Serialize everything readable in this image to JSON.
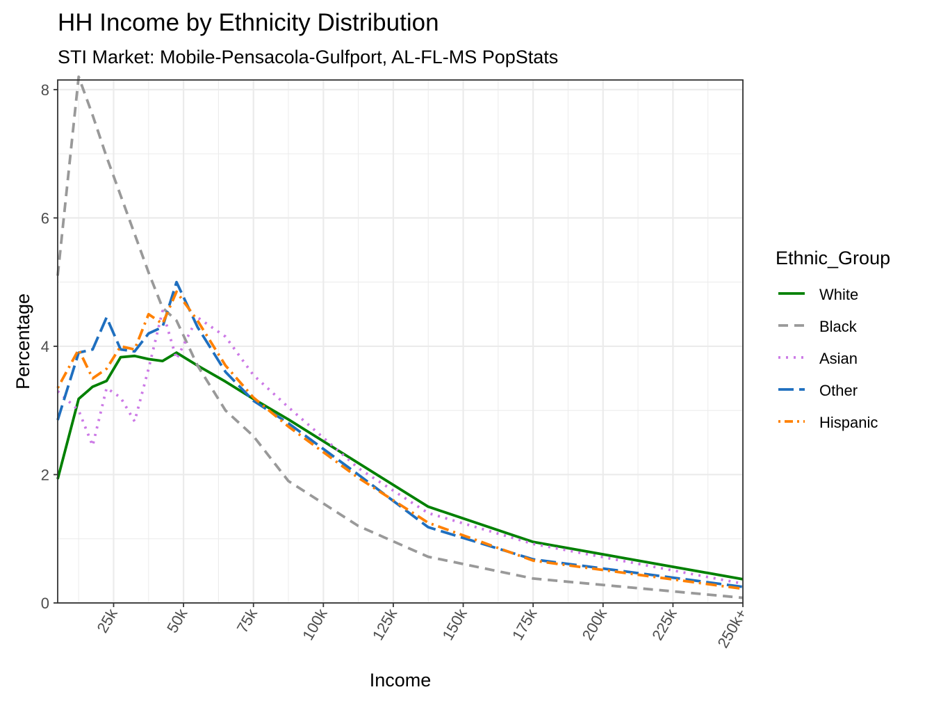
{
  "chart_data": {
    "type": "line",
    "title": "HH Income by Ethnicity Distribution",
    "subtitle": "STI Market: Mobile-Pensacola-Gulfport, AL-FL-MS PopStats",
    "xlabel": "Income",
    "ylabel": "Percentage",
    "x_ticks": [
      {
        "value": 25000,
        "label": "25k"
      },
      {
        "value": 50000,
        "label": "50k"
      },
      {
        "value": 75000,
        "label": "75k"
      },
      {
        "value": 100000,
        "label": "100k"
      },
      {
        "value": 125000,
        "label": "125k"
      },
      {
        "value": 150000,
        "label": "150k"
      },
      {
        "value": 175000,
        "label": "175k"
      },
      {
        "value": 200000,
        "label": "200k"
      },
      {
        "value": 225000,
        "label": "225k"
      },
      {
        "value": 250000,
        "label": "250k+"
      }
    ],
    "y_ticks": [
      0,
      2,
      4,
      6,
      8
    ],
    "xlim": [
      5000,
      250000
    ],
    "ylim": [
      0,
      8.15
    ],
    "grid": true,
    "legend_position": "right",
    "legend_title": "Ethnic_Group",
    "x": [
      5000,
      12500,
      17500,
      22500,
      27500,
      32500,
      37500,
      42500,
      47500,
      55000,
      65000,
      75000,
      87500,
      112500,
      137500,
      175000,
      250000
    ],
    "series": [
      {
        "name": "White",
        "color": "#008000",
        "dash": "solid",
        "values": [
          1.93,
          3.18,
          3.37,
          3.46,
          3.83,
          3.85,
          3.8,
          3.77,
          3.9,
          3.7,
          3.45,
          3.18,
          2.86,
          2.18,
          1.5,
          0.95,
          0.37
        ]
      },
      {
        "name": "Black",
        "color": "#999999",
        "dash": "dashed",
        "values": [
          5.1,
          8.2,
          7.6,
          6.95,
          6.35,
          5.75,
          5.15,
          4.6,
          4.4,
          3.7,
          3.0,
          2.6,
          1.9,
          1.2,
          0.72,
          0.38,
          0.08
        ]
      },
      {
        "name": "Asian",
        "color": "#cc79e6",
        "dash": "dotted",
        "values": [
          3.3,
          3.0,
          2.45,
          3.35,
          3.2,
          2.83,
          3.65,
          4.55,
          3.8,
          4.45,
          4.15,
          3.55,
          3.05,
          2.1,
          1.4,
          0.92,
          0.3
        ]
      },
      {
        "name": "Other",
        "color": "#1f6fbf",
        "dash": "longdash",
        "values": [
          2.85,
          3.9,
          3.95,
          4.45,
          3.95,
          3.92,
          4.2,
          4.3,
          5.0,
          4.3,
          3.6,
          3.15,
          2.8,
          2.0,
          1.18,
          0.68,
          0.25
        ]
      },
      {
        "name": "Hispanic",
        "color": "#ff8000",
        "dash": "dotdash",
        "values": [
          3.35,
          3.95,
          3.5,
          3.65,
          4.0,
          3.95,
          4.5,
          4.35,
          4.85,
          4.4,
          3.7,
          3.2,
          2.75,
          1.95,
          1.25,
          0.66,
          0.22
        ]
      }
    ]
  }
}
